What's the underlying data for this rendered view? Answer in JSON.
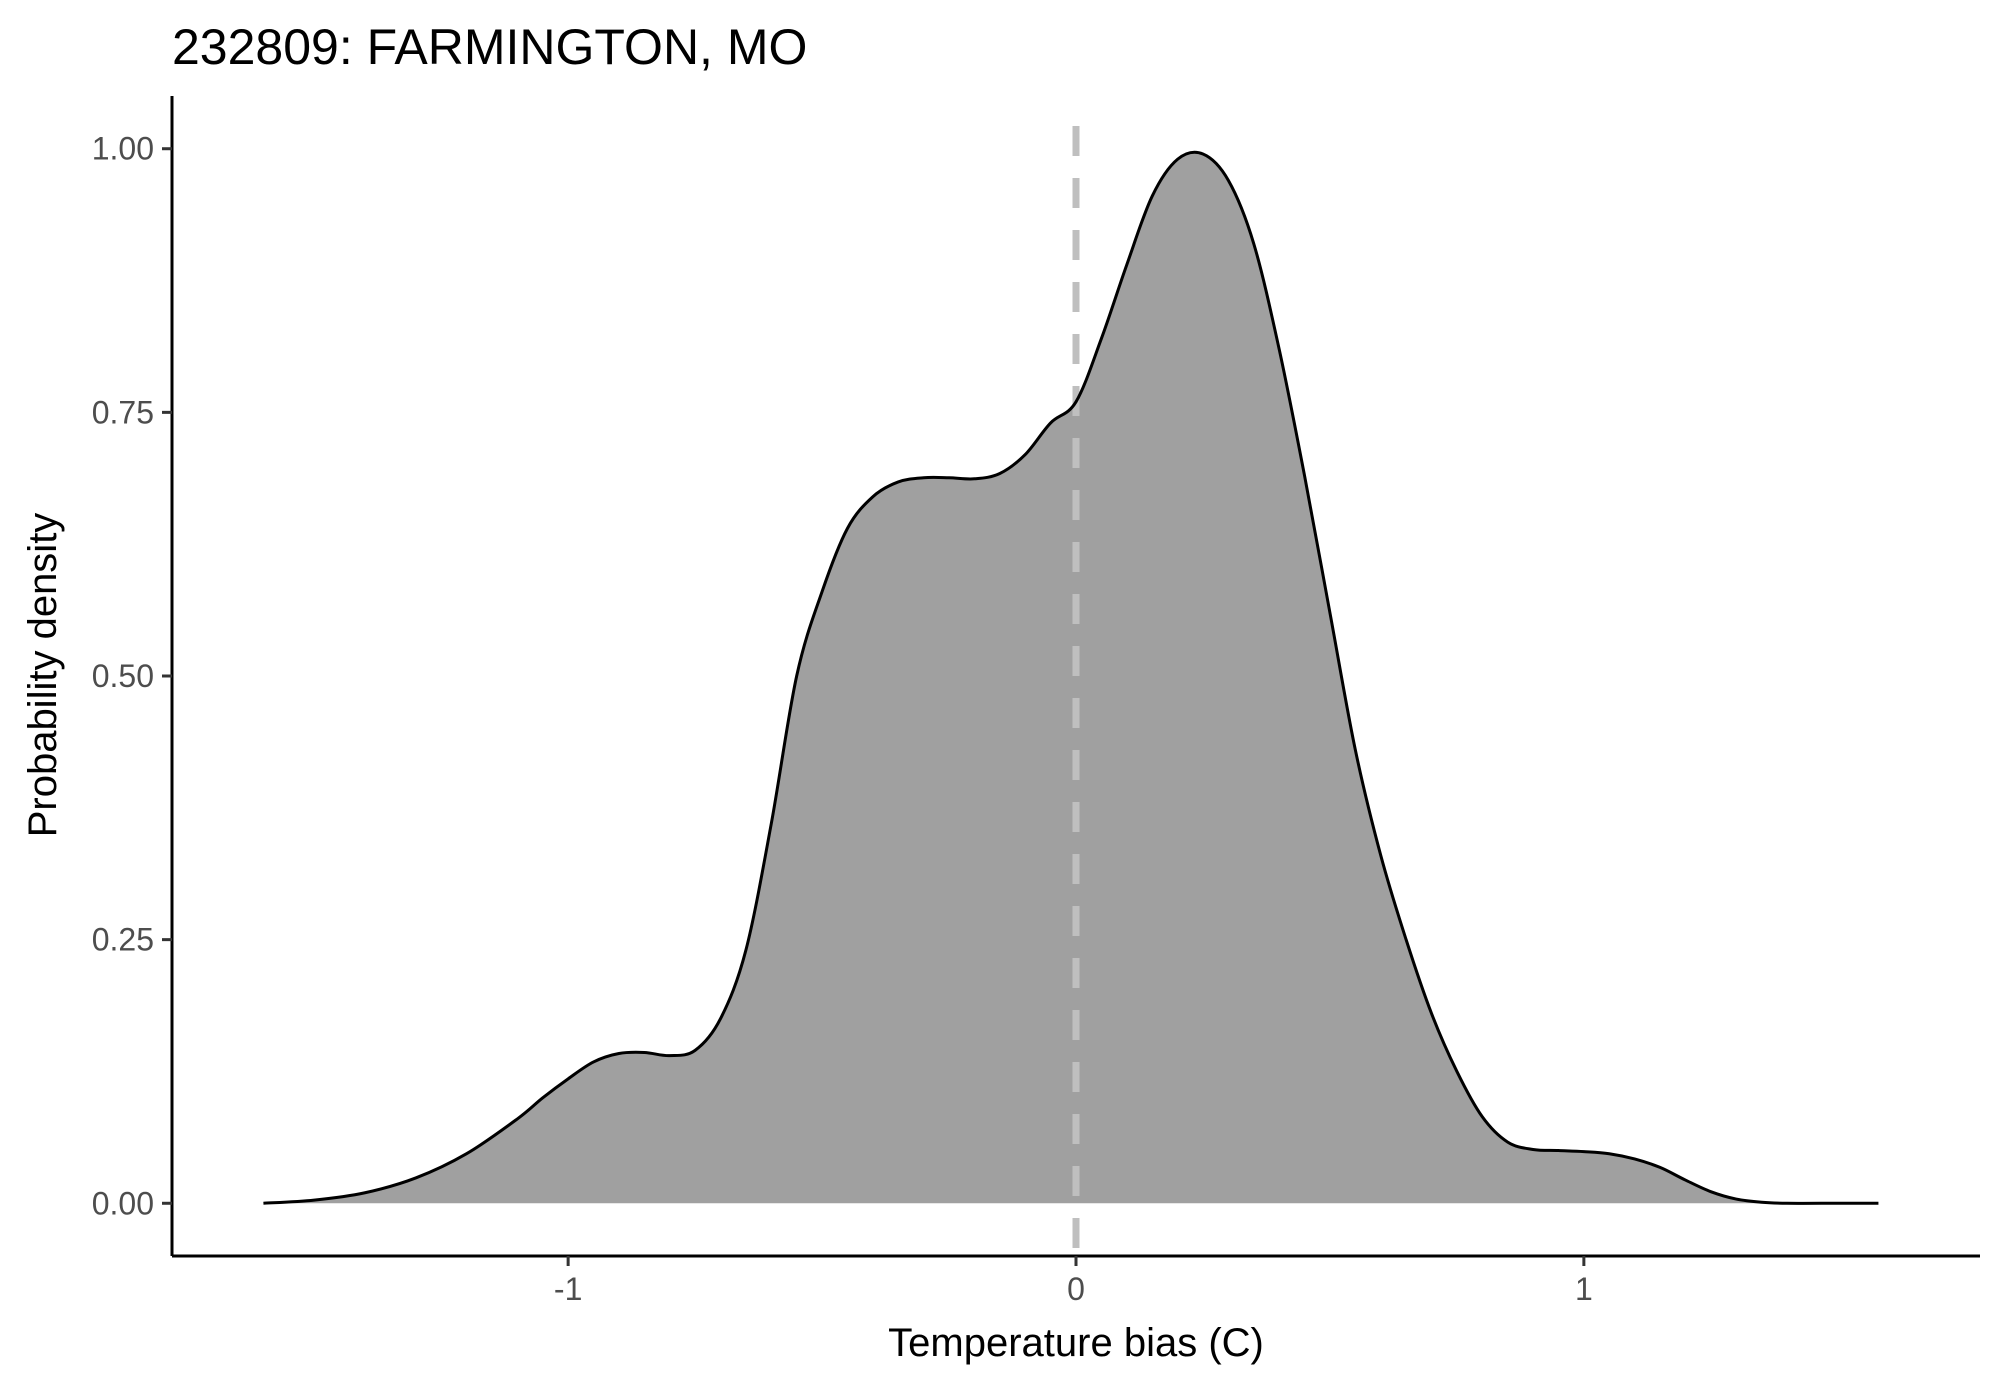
{
  "chart_data": {
    "type": "area",
    "title": "232809: FARMINGTON, MO",
    "xlabel": "Temperature bias (C)",
    "ylabel": "Probability density",
    "xlim": [
      -1.78,
      1.78
    ],
    "ylim": [
      -0.05,
      1.05
    ],
    "x_ticks": [
      -1,
      0,
      1
    ],
    "x_tick_labels": [
      "-1",
      "0",
      "1"
    ],
    "y_ticks": [
      0,
      0.25,
      0.5,
      0.75,
      1.0
    ],
    "y_tick_labels": [
      "0.00",
      "0.25",
      "0.50",
      "0.75",
      "1.00"
    ],
    "grid": false,
    "legend": "none",
    "reference_line": {
      "x": 0,
      "style": "dashed",
      "color": "#bfbfbf"
    },
    "fill_color": "#a0a0a0",
    "line_color": "#000000",
    "series": [
      {
        "x": [
          -1.6,
          -1.5,
          -1.4,
          -1.3,
          -1.2,
          -1.1,
          -1.05,
          -1.0,
          -0.95,
          -0.9,
          -0.85,
          -0.8,
          -0.75,
          -0.7,
          -0.65,
          -0.6,
          -0.55,
          -0.5,
          -0.45,
          -0.4,
          -0.35,
          -0.3,
          -0.25,
          -0.2,
          -0.15,
          -0.1,
          -0.05,
          0.0,
          0.05,
          0.1,
          0.15,
          0.2,
          0.25,
          0.3,
          0.35,
          0.4,
          0.45,
          0.5,
          0.55,
          0.6,
          0.65,
          0.7,
          0.75,
          0.8,
          0.85,
          0.9,
          0.95,
          1.0,
          1.05,
          1.1,
          1.15,
          1.2,
          1.25,
          1.3,
          1.35,
          1.4,
          1.5,
          1.58
        ],
        "y": [
          0.0,
          0.003,
          0.01,
          0.024,
          0.047,
          0.08,
          0.1,
          0.118,
          0.134,
          0.142,
          0.143,
          0.14,
          0.145,
          0.175,
          0.24,
          0.36,
          0.5,
          0.58,
          0.64,
          0.67,
          0.684,
          0.688,
          0.688,
          0.687,
          0.692,
          0.71,
          0.74,
          0.76,
          0.82,
          0.89,
          0.955,
          0.99,
          0.995,
          0.97,
          0.91,
          0.81,
          0.69,
          0.56,
          0.43,
          0.33,
          0.25,
          0.18,
          0.125,
          0.082,
          0.058,
          0.051,
          0.05,
          0.049,
          0.047,
          0.042,
          0.034,
          0.022,
          0.011,
          0.004,
          0.001,
          0.0,
          0.0,
          0.0
        ]
      }
    ]
  }
}
